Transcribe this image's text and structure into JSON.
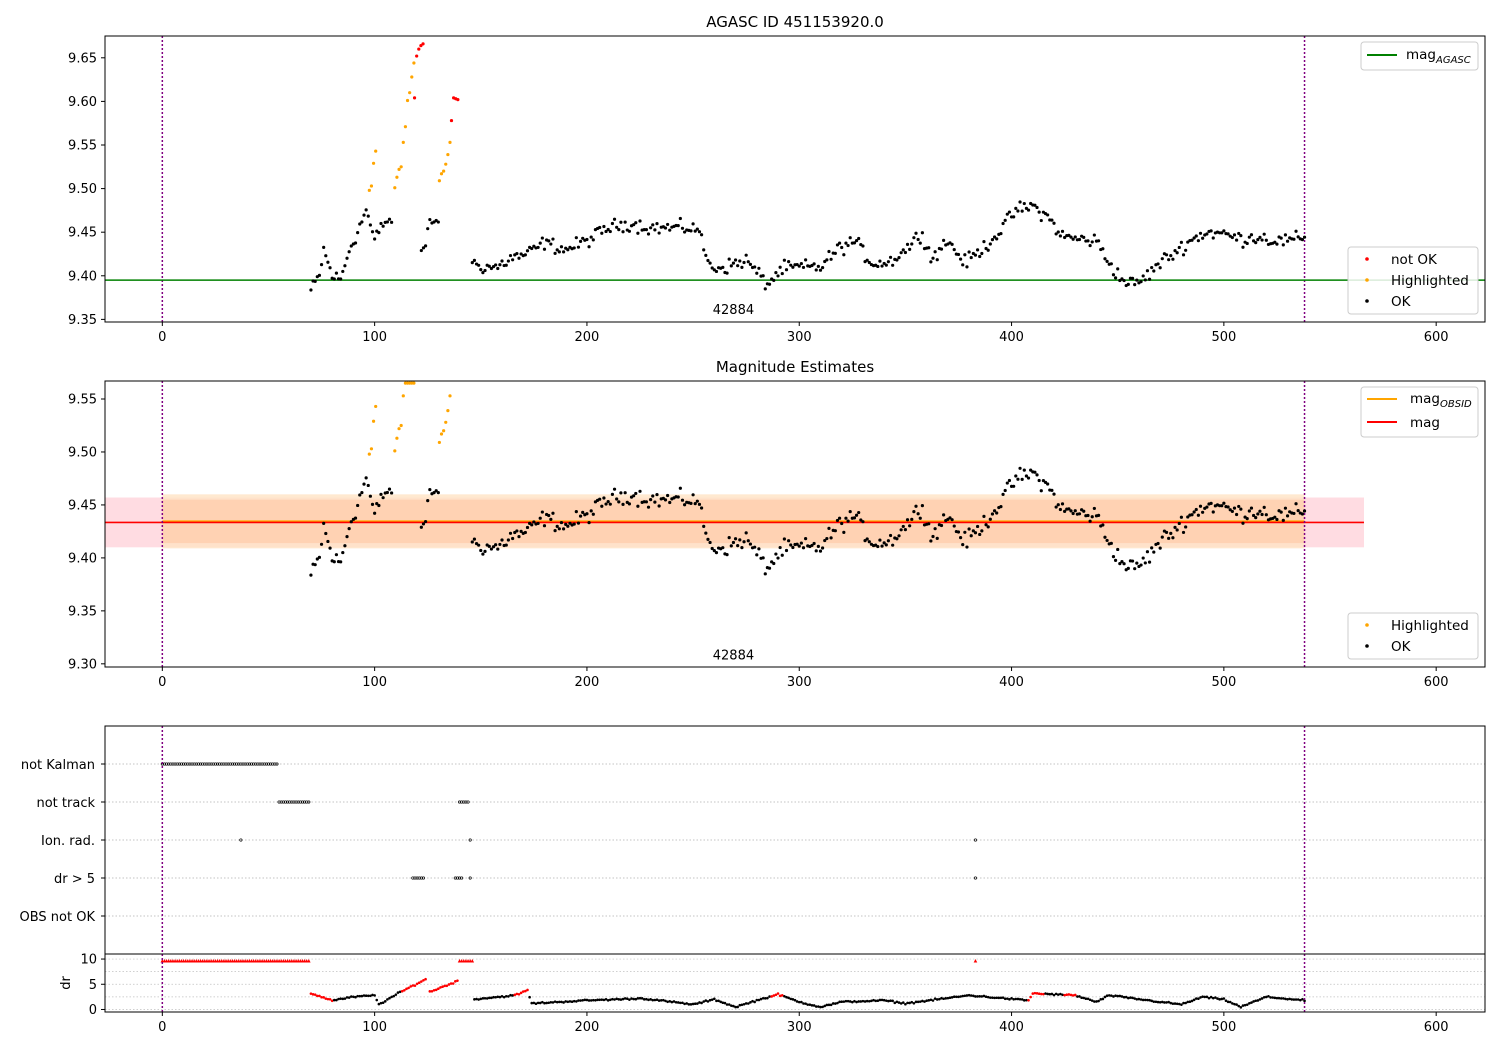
{
  "chart_data": [
    {
      "type": "scatter",
      "title": "AGASC ID 451153920.0",
      "xlim": [
        -27,
        623
      ],
      "ylim": [
        9.347,
        9.675
      ],
      "xticks": [
        0,
        100,
        200,
        300,
        400,
        500,
        600
      ],
      "xtick_labels": [
        "0",
        "100",
        "200",
        "300",
        "400",
        "500",
        "600"
      ],
      "yticks": [
        9.35,
        9.4,
        9.45,
        9.5,
        9.55,
        9.6,
        9.65
      ],
      "ytick_labels": [
        "9.35",
        "9.40",
        "9.45",
        "9.50",
        "9.55",
        "9.60",
        "9.65"
      ],
      "vlines": [
        0,
        538
      ],
      "hline": {
        "y": 9.395,
        "color": "#008000"
      },
      "annotation": {
        "text": "42884",
        "x": 269,
        "y": 9.361
      },
      "legend_upper": [
        {
          "label": "mag",
          "subscript": "AGASC",
          "color": "#008000",
          "kind": "line"
        }
      ],
      "legend_lower": [
        {
          "label": "not OK",
          "color": "#ff0000",
          "kind": "point"
        },
        {
          "label": "Highlighted",
          "color": "#ffa500",
          "kind": "point"
        },
        {
          "label": "OK",
          "color": "#000000",
          "kind": "point"
        }
      ],
      "highlighted_points": [
        [
          97.5,
          9.498
        ],
        [
          98.5,
          9.503
        ],
        [
          99.5,
          9.529
        ],
        [
          100.5,
          9.543
        ],
        [
          109.5,
          9.501
        ],
        [
          110.5,
          9.513
        ],
        [
          111.5,
          9.522
        ],
        [
          112.5,
          9.525
        ],
        [
          113.5,
          9.553
        ],
        [
          114.5,
          9.571
        ],
        [
          115.5,
          9.601
        ],
        [
          116.5,
          9.61
        ],
        [
          117.5,
          9.628
        ],
        [
          118.5,
          9.644
        ],
        [
          130.5,
          9.509
        ],
        [
          131.5,
          9.517
        ],
        [
          132.5,
          9.52
        ],
        [
          133.5,
          9.528
        ],
        [
          134.5,
          9.539
        ],
        [
          135.5,
          9.553
        ]
      ],
      "not_ok_points": [
        [
          118.8,
          9.604
        ],
        [
          119.8,
          9.652
        ],
        [
          120.8,
          9.66
        ],
        [
          121.8,
          9.664
        ],
        [
          122.8,
          9.666
        ],
        [
          136.2,
          9.578
        ],
        [
          137.2,
          9.604
        ],
        [
          138.2,
          9.603
        ],
        [
          139.2,
          9.602
        ]
      ]
    },
    {
      "type": "scatter",
      "title": "Magnitude Estimates",
      "xlim": [
        -27,
        623
      ],
      "ylim": [
        9.297,
        9.567
      ],
      "xticks": [
        0,
        100,
        200,
        300,
        400,
        500,
        600
      ],
      "xtick_labels": [
        "0",
        "100",
        "200",
        "300",
        "400",
        "500",
        "600"
      ],
      "yticks": [
        9.3,
        9.35,
        9.4,
        9.45,
        9.5,
        9.55
      ],
      "ytick_labels": [
        "9.30",
        "9.35",
        "9.40",
        "9.45",
        "9.50",
        "9.55"
      ],
      "vlines": [
        0,
        538
      ],
      "annotation": {
        "text": "42884",
        "x": 269,
        "y": 9.308
      },
      "mag_obsid": {
        "value": 9.4345,
        "band": [
          9.409,
          9.46
        ],
        "band_inner": [
          9.414,
          9.455
        ],
        "x_range": [
          0,
          538
        ],
        "color": "#ffa500"
      },
      "mag": {
        "value": 9.4335,
        "band": [
          9.41,
          9.457
        ],
        "x_range": [
          -27,
          566
        ],
        "color": "#ff0000"
      },
      "legend_upper": [
        {
          "label": "mag",
          "subscript": "OBSID",
          "color": "#ffa500",
          "kind": "line"
        },
        {
          "label": "mag",
          "subscript": "",
          "color": "#ff0000",
          "kind": "line"
        }
      ],
      "legend_lower": [
        {
          "label": "Highlighted",
          "color": "#ffa500",
          "kind": "point"
        },
        {
          "label": "OK",
          "color": "#000000",
          "kind": "point"
        }
      ],
      "highlighted_points": [
        [
          97.5,
          9.498
        ],
        [
          98.5,
          9.503
        ],
        [
          99.5,
          9.529
        ],
        [
          100.5,
          9.543
        ],
        [
          109.5,
          9.501
        ],
        [
          110.5,
          9.513
        ],
        [
          111.5,
          9.522
        ],
        [
          112.5,
          9.525
        ],
        [
          113.5,
          9.553
        ],
        [
          114.5,
          9.565
        ],
        [
          115.5,
          9.565
        ],
        [
          116.5,
          9.565
        ],
        [
          117.5,
          9.565
        ],
        [
          118.5,
          9.565
        ],
        [
          130.5,
          9.509
        ],
        [
          131.5,
          9.517
        ],
        [
          132.5,
          9.52
        ],
        [
          133.5,
          9.528
        ],
        [
          134.5,
          9.539
        ],
        [
          135.5,
          9.553
        ]
      ]
    },
    {
      "type": "scatter",
      "xlim": [
        -27,
        623
      ],
      "categories": [
        "not Kalman",
        "not track",
        "Ion. rad.",
        "dr > 5",
        "OBS not OK"
      ],
      "flag_segments": [
        {
          "row": 0,
          "start": 0,
          "end": 54
        },
        {
          "row": 1,
          "start": 55,
          "end": 69
        },
        {
          "row": 1,
          "start": 140,
          "end": 144
        },
        {
          "row": 2,
          "start": 37,
          "end": 37
        },
        {
          "row": 2,
          "start": 145,
          "end": 145
        },
        {
          "row": 2,
          "start": 383,
          "end": 383
        },
        {
          "row": 3,
          "start": 118,
          "end": 123
        },
        {
          "row": 3,
          "start": 138,
          "end": 141
        },
        {
          "row": 3,
          "start": 145,
          "end": 145
        },
        {
          "row": 3,
          "start": 383,
          "end": 383
        }
      ],
      "dr_ylim": [
        -0.5,
        11
      ],
      "dr_yticks": [
        0,
        5,
        10
      ],
      "dr_ytick_labels": [
        "0",
        "5",
        "10"
      ],
      "dr_ylabel": "dr",
      "dr_clip_points": [
        [
          0,
          69
        ],
        [
          140,
          146
        ],
        [
          383,
          383
        ]
      ],
      "dr_red_ranges": [
        [
          69,
          80
        ],
        [
          113,
          124
        ],
        [
          124,
          141
        ],
        [
          166,
          172
        ],
        [
          287,
          292
        ],
        [
          408,
          415
        ],
        [
          425,
          430
        ]
      ],
      "vlines": [
        0,
        538
      ]
    }
  ]
}
